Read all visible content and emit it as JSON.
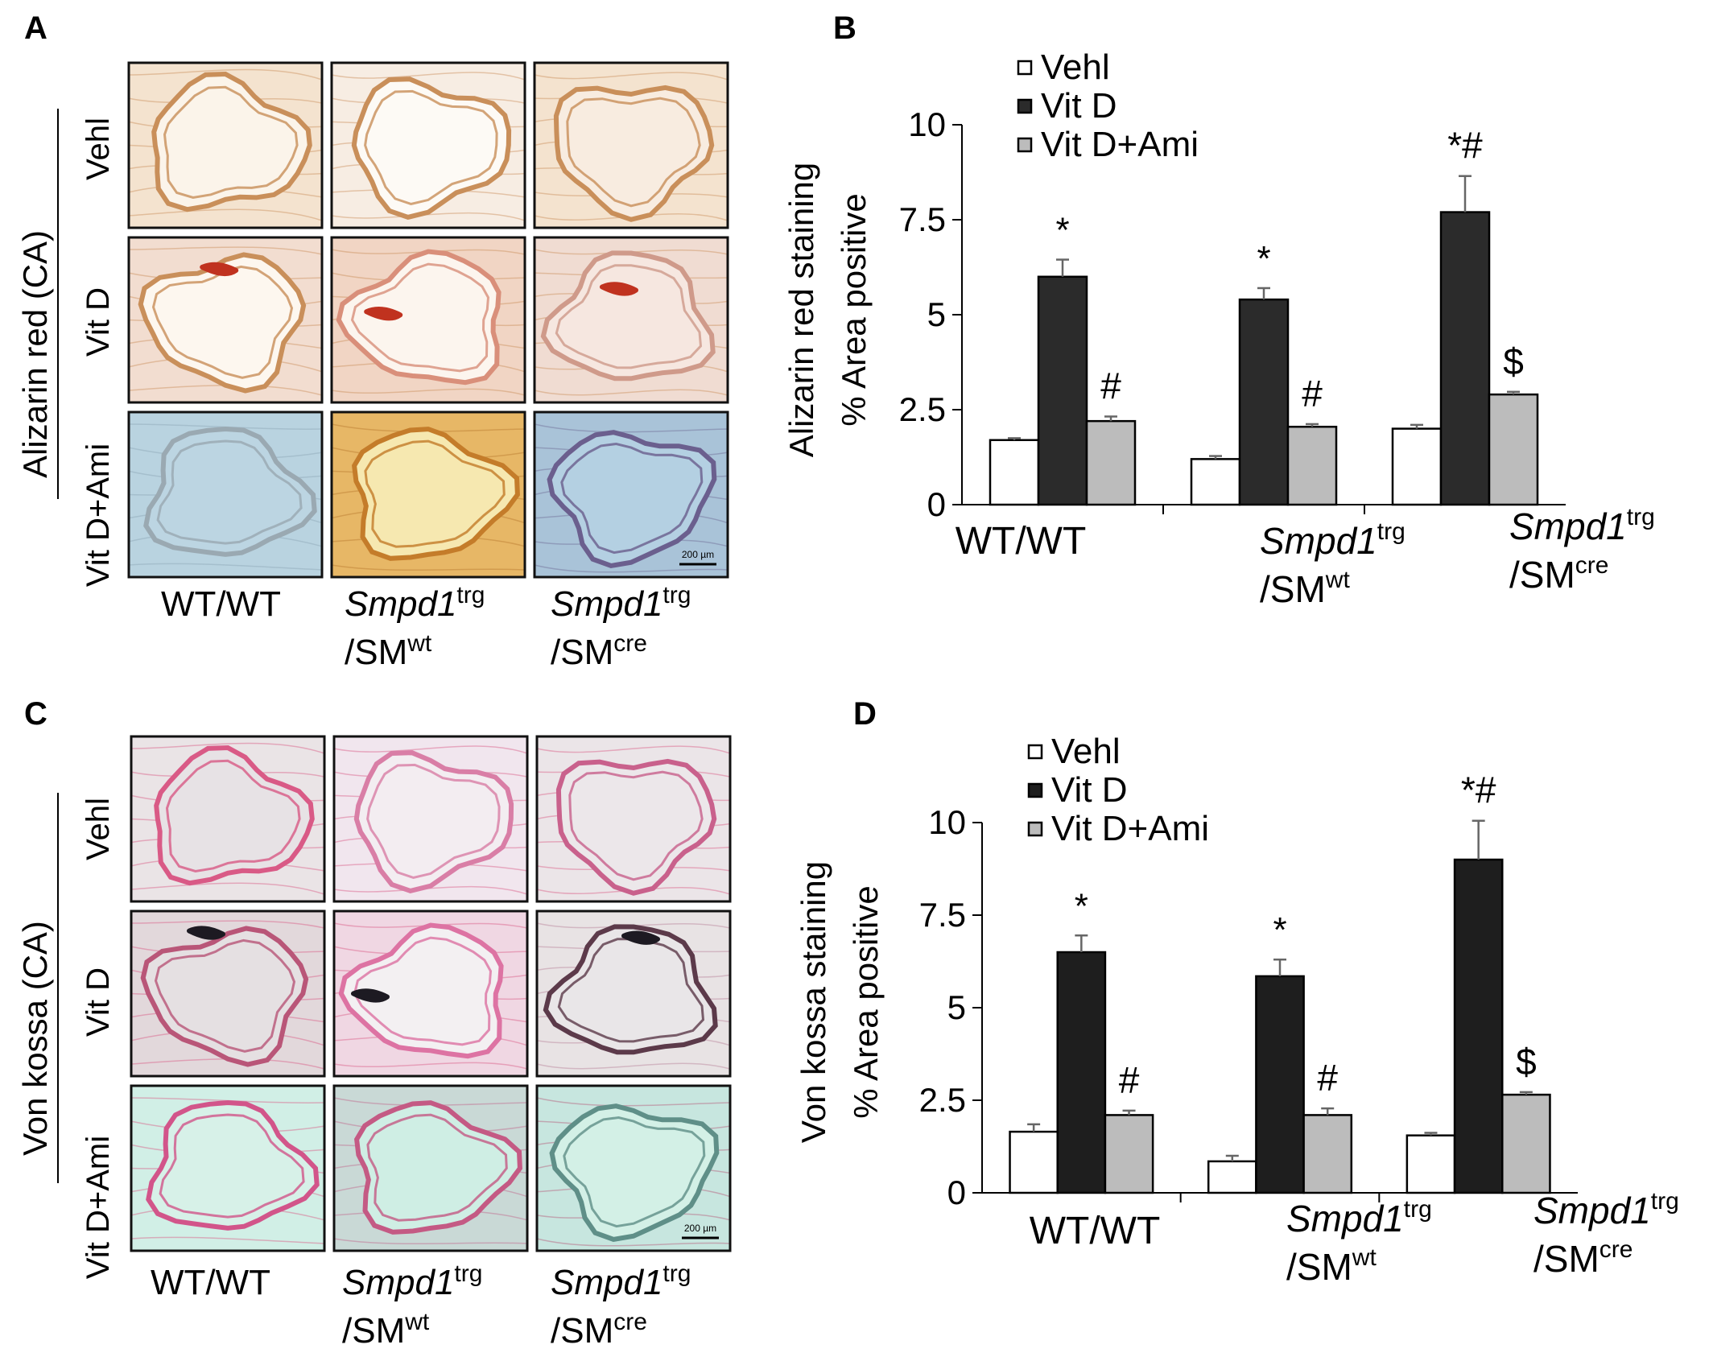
{
  "panels": {
    "A": {
      "letter": "A",
      "side_label": "Alizarin red (CA)",
      "row_labels": [
        "Vehl",
        "Vit D",
        "Vit D+Ami"
      ],
      "scale_bar": "200 µm",
      "stain_colors": {
        "vehl": "#f4e3cf",
        "vitd": "#f2ddd0",
        "deposit": "#c0321f",
        "tissue": "#c98f5a",
        "ami_blue": "#b9d3e0",
        "ami_gold": "#e7b766"
      }
    },
    "C": {
      "letter": "C",
      "side_label": "Von kossa (CA)",
      "row_labels": [
        "Vehl",
        "Vit D",
        "Vit D+Ami"
      ],
      "scale_bar": "200 µm",
      "stain_colors": {
        "vehl": "#eae4e6",
        "vitd": "#e8e3e4",
        "deposit": "#1d1a22",
        "tissue": "#d95a86",
        "ami_teal": "#d1efe6"
      }
    },
    "B": {
      "letter": "B"
    },
    "D": {
      "letter": "D"
    }
  },
  "genotype_labels": {
    "g1": {
      "main": "WT/WT"
    },
    "g2": {
      "main": "Smpd1",
      "sup1": "trg",
      "line2": "/SM",
      "sup2": "wt"
    },
    "g3": {
      "main": "Smpd1",
      "sup1": "trg",
      "line2": "/SM",
      "sup2": "cre"
    }
  },
  "chart_data": [
    {
      "type": "bar",
      "panel": "B",
      "ylabel_line1": "Alizarin red staining",
      "ylabel_line2": "% Area positive",
      "ylim": [
        0,
        10
      ],
      "yticks": [
        "0",
        "2.5",
        "5",
        "7.5",
        "10"
      ],
      "categories": [
        "WT/WT",
        "Smpd1trg/SMwt",
        "Smpd1trg/SMcre"
      ],
      "legend_position": "top-left",
      "series": [
        {
          "name": "Vehl",
          "color": "#ffffff",
          "values": [
            1.7,
            1.2,
            2.0
          ],
          "errors": [
            0.05,
            0.08,
            0.1
          ]
        },
        {
          "name": "Vit D",
          "color": "#2b2b2b",
          "values": [
            6.0,
            5.4,
            7.7
          ],
          "errors": [
            0.45,
            0.3,
            0.95
          ]
        },
        {
          "name": "Vit D+Ami",
          "color": "#bcbcbc",
          "values": [
            2.2,
            2.05,
            2.9
          ],
          "errors": [
            0.12,
            0.07,
            0.07
          ]
        }
      ],
      "annotations": [
        {
          "category": 0,
          "series": 1,
          "text": "*"
        },
        {
          "category": 0,
          "series": 2,
          "text": "#"
        },
        {
          "category": 1,
          "series": 1,
          "text": "*"
        },
        {
          "category": 1,
          "series": 2,
          "text": "#"
        },
        {
          "category": 2,
          "series": 1,
          "text": "*#"
        },
        {
          "category": 2,
          "series": 2,
          "text": "$"
        }
      ]
    },
    {
      "type": "bar",
      "panel": "D",
      "ylabel_line1": "Von kossa  staining",
      "ylabel_line2": "% Area positive",
      "ylim": [
        0,
        10
      ],
      "yticks": [
        "0",
        "2.5",
        "5",
        "7.5",
        "10"
      ],
      "categories": [
        "WT/WT",
        "Smpd1trg/SMwt",
        "Smpd1trg/SMcre"
      ],
      "legend_position": "top-left",
      "series": [
        {
          "name": "Vehl",
          "color": "#ffffff",
          "values": [
            1.65,
            0.85,
            1.55
          ],
          "errors": [
            0.2,
            0.15,
            0.07
          ]
        },
        {
          "name": "Vit D",
          "color": "#1e1e1e",
          "values": [
            6.5,
            5.85,
            9.0
          ],
          "errors": [
            0.45,
            0.45,
            1.05
          ]
        },
        {
          "name": "Vit D+Ami",
          "color": "#bcbcbc",
          "values": [
            2.1,
            2.1,
            2.65
          ],
          "errors": [
            0.12,
            0.18,
            0.07
          ]
        }
      ],
      "annotations": [
        {
          "category": 0,
          "series": 1,
          "text": "*"
        },
        {
          "category": 0,
          "series": 2,
          "text": "#"
        },
        {
          "category": 1,
          "series": 1,
          "text": "*"
        },
        {
          "category": 1,
          "series": 2,
          "text": "#"
        },
        {
          "category": 2,
          "series": 1,
          "text": "*#"
        },
        {
          "category": 2,
          "series": 2,
          "text": "$"
        }
      ]
    }
  ]
}
